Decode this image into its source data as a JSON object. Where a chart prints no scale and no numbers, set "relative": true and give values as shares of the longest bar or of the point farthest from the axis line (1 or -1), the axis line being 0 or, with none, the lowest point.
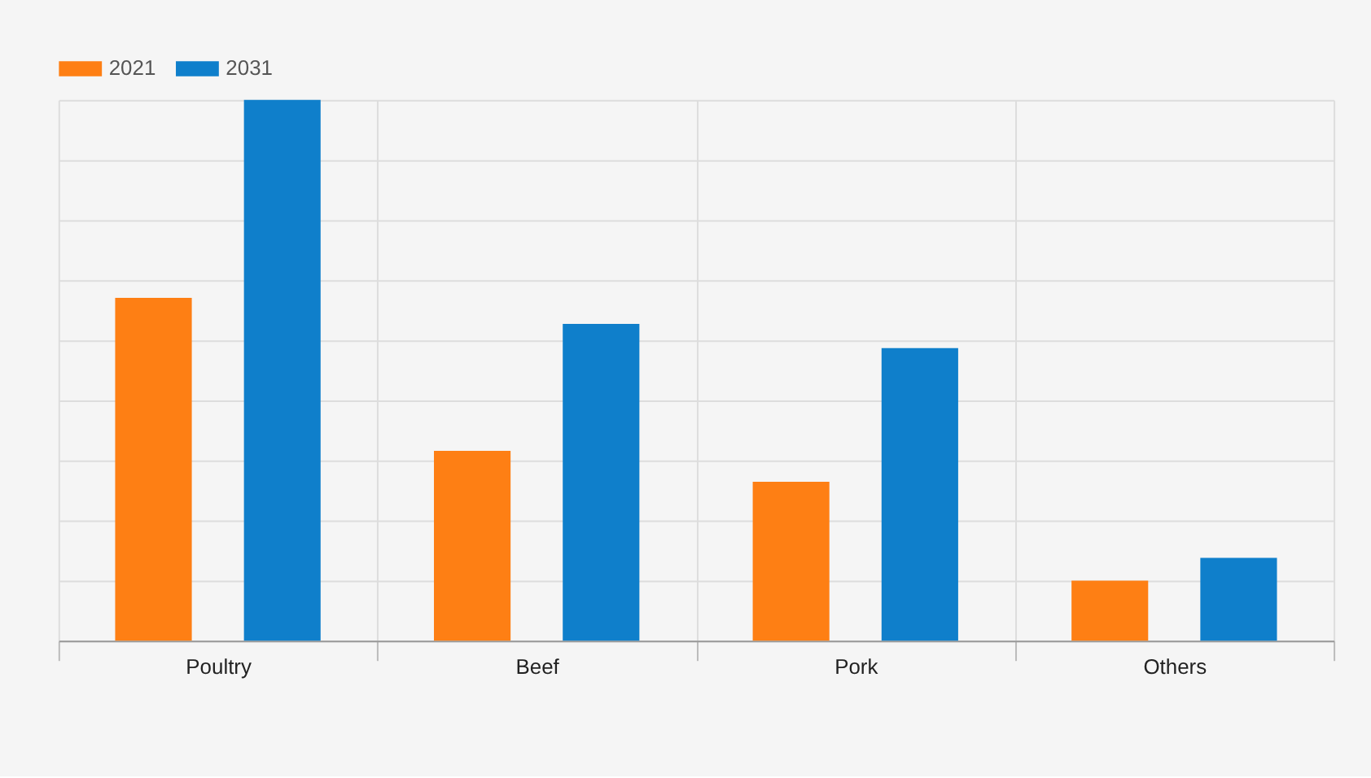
{
  "chart_data": {
    "type": "bar",
    "relative": true,
    "categories": [
      "Poultry",
      "Beef",
      "Pork",
      "Others"
    ],
    "series": [
      {
        "name": "2021",
        "color": "#fe7f14",
        "values": [
          0.634,
          0.351,
          0.294,
          0.111
        ]
      },
      {
        "name": "2031",
        "color": "#0f7fcb",
        "values": [
          1,
          0.586,
          0.541,
          0.153
        ]
      }
    ],
    "grid": true,
    "legend": "top"
  }
}
